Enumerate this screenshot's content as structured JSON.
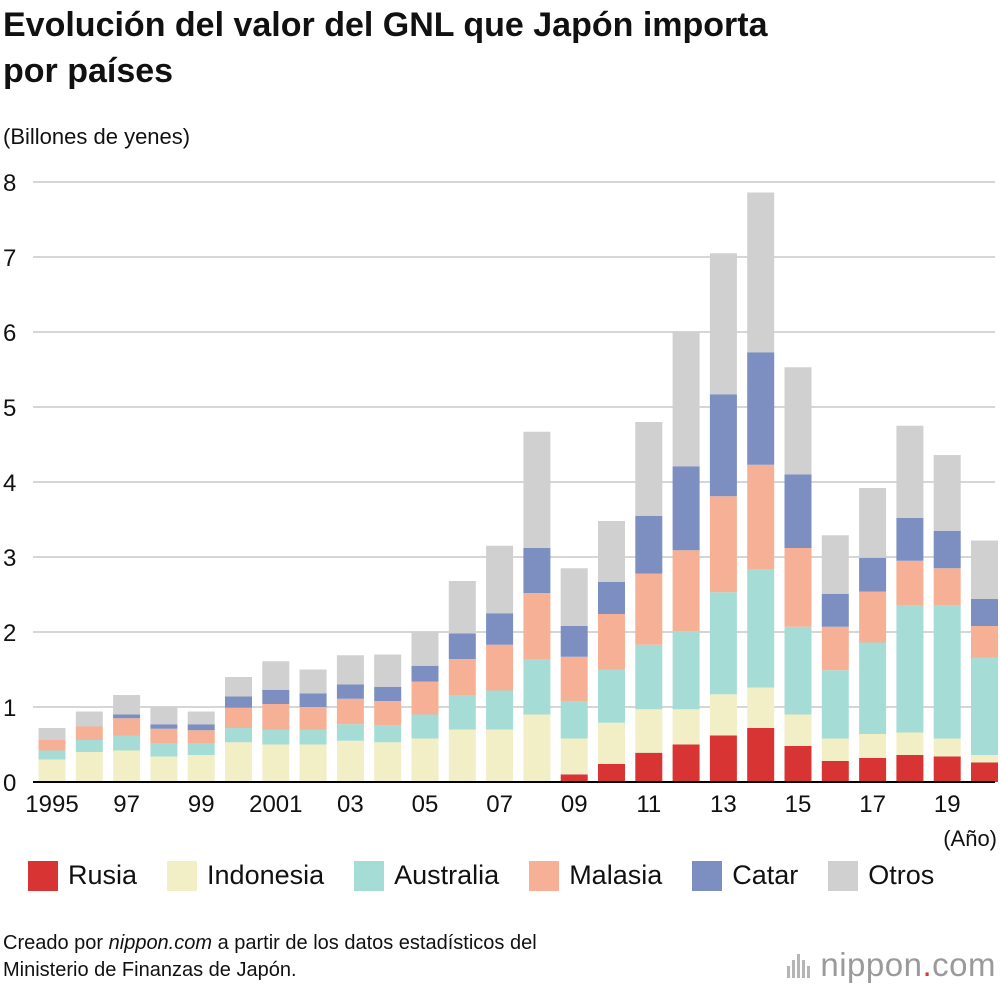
{
  "title_lines": [
    "Evolución del valor del GNL que Japón importa",
    "por países"
  ],
  "unit_label": "(Billones de yenes)",
  "source": {
    "prefix": "Creado por ",
    "site": "nippon.com",
    "suffix": " a partir de los datos estadísticos del",
    "line2": "Ministerio de Finanzas de Japón."
  },
  "logo": {
    "main": "nippon",
    "dot": ".",
    "tld": "com"
  },
  "colors": {
    "Rusia": "#d93434",
    "Indonesia": "#f2eec6",
    "Australia": "#a5ddd6",
    "Malasia": "#f5b096",
    "Catar": "#7d8fc0",
    "Otros": "#d0d0d0",
    "grid": "#c8c8c8",
    "axis": "#000000"
  },
  "chart_data": {
    "type": "bar",
    "stacked": true,
    "title": "Evolución del valor del GNL que Japón importa por países",
    "ylabel": "(Billones de yenes)",
    "xlabel": "(Año)",
    "ylim": [
      0,
      8
    ],
    "yticks": [
      "0",
      "1",
      "2",
      "3",
      "4",
      "5",
      "6",
      "7",
      "8"
    ],
    "grid": true,
    "legend_position": "bottom",
    "categories": [
      "1995",
      "1996",
      "1997",
      "1998",
      "1999",
      "2000",
      "2001",
      "2002",
      "2003",
      "2004",
      "2005",
      "2006",
      "2007",
      "2008",
      "2009",
      "2010",
      "2011",
      "2012",
      "2013",
      "2014",
      "2015",
      "2016",
      "2017",
      "2018",
      "2019",
      "2020"
    ],
    "tick_labels": [
      "1995",
      "",
      "97",
      "",
      "99",
      "",
      "2001",
      "",
      "03",
      "",
      "05",
      "",
      "07",
      "",
      "09",
      "",
      "11",
      "",
      "13",
      "",
      "15",
      "",
      "17",
      "",
      "19",
      ""
    ],
    "series": [
      {
        "name": "Rusia",
        "values": [
          0,
          0,
          0,
          0,
          0,
          0,
          0,
          0,
          0,
          0,
          0,
          0,
          0,
          0,
          0.1,
          0.24,
          0.39,
          0.5,
          0.62,
          0.72,
          0.48,
          0.28,
          0.32,
          0.36,
          0.34,
          0.26
        ]
      },
      {
        "name": "Indonesia",
        "values": [
          0.3,
          0.4,
          0.42,
          0.34,
          0.36,
          0.53,
          0.5,
          0.5,
          0.55,
          0.53,
          0.58,
          0.7,
          0.7,
          0.9,
          0.48,
          0.55,
          0.58,
          0.47,
          0.55,
          0.54,
          0.42,
          0.3,
          0.32,
          0.3,
          0.24,
          0.1
        ]
      },
      {
        "name": "Australia",
        "values": [
          0.12,
          0.16,
          0.2,
          0.17,
          0.16,
          0.19,
          0.2,
          0.2,
          0.22,
          0.22,
          0.32,
          0.46,
          0.52,
          0.73,
          0.5,
          0.71,
          0.86,
          1.04,
          1.36,
          1.58,
          1.17,
          0.91,
          1.22,
          1.69,
          1.77,
          1.3
        ]
      },
      {
        "name": "Malasia",
        "values": [
          0.14,
          0.18,
          0.23,
          0.2,
          0.17,
          0.27,
          0.34,
          0.3,
          0.34,
          0.33,
          0.44,
          0.48,
          0.61,
          0.89,
          0.59,
          0.74,
          0.95,
          1.08,
          1.28,
          1.39,
          1.05,
          0.58,
          0.68,
          0.6,
          0.5,
          0.42
        ]
      },
      {
        "name": "Catar",
        "values": [
          0.0,
          0.0,
          0.05,
          0.06,
          0.08,
          0.15,
          0.19,
          0.18,
          0.19,
          0.19,
          0.21,
          0.34,
          0.42,
          0.6,
          0.41,
          0.43,
          0.77,
          1.12,
          1.36,
          1.5,
          0.98,
          0.44,
          0.45,
          0.57,
          0.5,
          0.36
        ]
      },
      {
        "name": "Otros",
        "values": [
          0.16,
          0.2,
          0.26,
          0.23,
          0.17,
          0.26,
          0.38,
          0.32,
          0.39,
          0.43,
          0.46,
          0.7,
          0.9,
          1.55,
          0.77,
          0.81,
          1.25,
          1.8,
          1.88,
          2.13,
          1.43,
          0.78,
          0.93,
          1.23,
          1.01,
          0.78
        ]
      }
    ]
  }
}
